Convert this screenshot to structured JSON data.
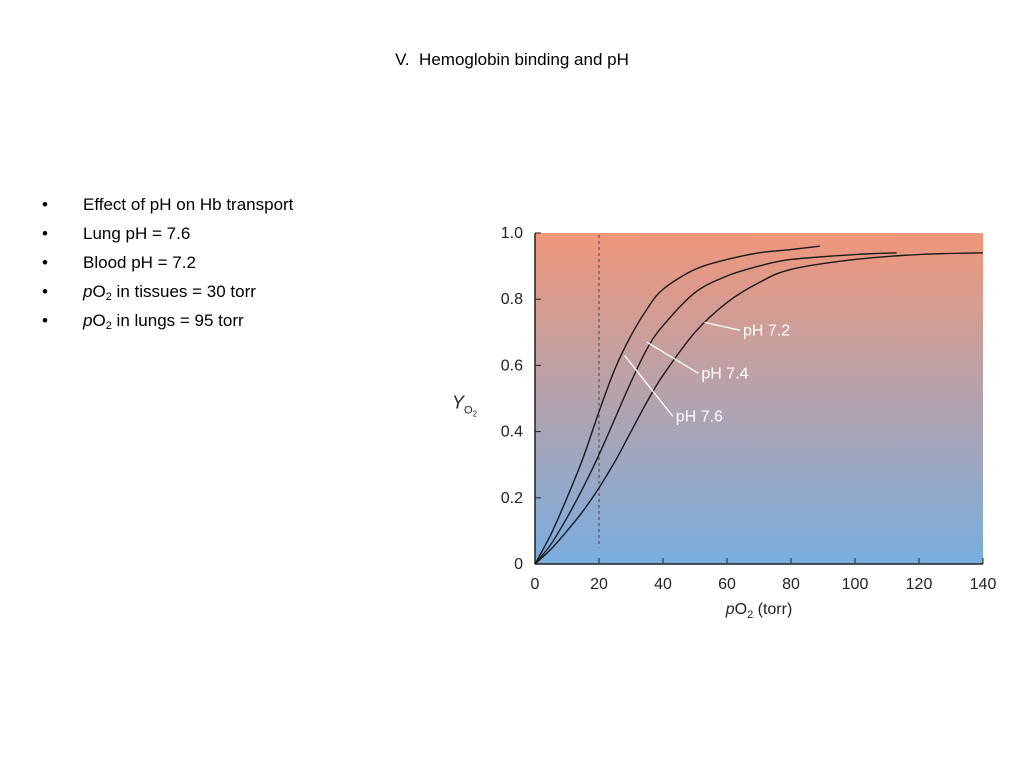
{
  "slide": {
    "title": "V.  Hemoglobin binding and pH",
    "bullets": [
      {
        "parts": [
          {
            "t": "Effect of pH on Hb transport",
            "s": "n"
          }
        ]
      },
      {
        "parts": [
          {
            "t": "Lung pH = 7.6",
            "s": "n"
          }
        ]
      },
      {
        "parts": [
          {
            "t": "Blood pH = 7.2",
            "s": "n"
          }
        ]
      },
      {
        "parts": [
          {
            "t": "p",
            "s": "i"
          },
          {
            "t": "O",
            "s": "n"
          },
          {
            "t": "2",
            "s": "sub"
          },
          {
            "t": " in tissues = 30 torr",
            "s": "n"
          }
        ]
      },
      {
        "parts": [
          {
            "t": "p",
            "s": "i"
          },
          {
            "t": "O",
            "s": "n"
          },
          {
            "t": "2",
            "s": "sub"
          },
          {
            "t": " in lungs = 95 torr",
            "s": "n"
          }
        ]
      }
    ],
    "bullet_symbol": "•"
  },
  "chart_data": {
    "type": "line",
    "xlabel": "pO2 (torr)",
    "ylabel": "YO2",
    "xlim": [
      0,
      140
    ],
    "ylim": [
      0,
      1.0
    ],
    "xticks": [
      0,
      20,
      40,
      60,
      80,
      100,
      120,
      140
    ],
    "yticks": [
      0,
      0.2,
      0.4,
      0.6,
      0.8,
      1.0
    ],
    "ytick_labels": [
      "0",
      "0.2",
      "0.4",
      "0.6",
      "0.8",
      "1.0"
    ],
    "reference_line_x": 20,
    "background_gradient": {
      "top": "#f0977a",
      "bottom": "#79aee0"
    },
    "series": [
      {
        "name": "pH 7.6",
        "x": [
          0,
          5,
          10,
          15,
          20,
          25,
          30,
          35,
          40,
          50,
          60,
          70,
          80,
          89
        ],
        "values": [
          0,
          0.09,
          0.2,
          0.32,
          0.46,
          0.59,
          0.69,
          0.77,
          0.83,
          0.89,
          0.92,
          0.94,
          0.95,
          0.96
        ]
      },
      {
        "name": "pH 7.4",
        "x": [
          0,
          5,
          10,
          15,
          20,
          25,
          30,
          35,
          40,
          50,
          60,
          70,
          80,
          100,
          113
        ],
        "values": [
          0,
          0.06,
          0.14,
          0.23,
          0.33,
          0.44,
          0.55,
          0.65,
          0.72,
          0.82,
          0.87,
          0.9,
          0.92,
          0.935,
          0.94
        ]
      },
      {
        "name": "pH 7.2",
        "x": [
          0,
          5,
          10,
          15,
          20,
          25,
          30,
          35,
          40,
          50,
          60,
          70,
          80,
          100,
          120,
          140
        ],
        "values": [
          0,
          0.045,
          0.1,
          0.16,
          0.23,
          0.31,
          0.4,
          0.49,
          0.57,
          0.7,
          0.79,
          0.85,
          0.89,
          0.92,
          0.935,
          0.94
        ]
      }
    ],
    "annotations": [
      {
        "text": "pH 7.2",
        "x": 65,
        "y": 0.7,
        "point_x": 53,
        "point_y": 0.73
      },
      {
        "text": "pH 7.4",
        "x": 52,
        "y": 0.57,
        "point_x": 35,
        "point_y": 0.67
      },
      {
        "text": "pH 7.6",
        "x": 44,
        "y": 0.44,
        "point_x": 28,
        "point_y": 0.63
      }
    ]
  }
}
